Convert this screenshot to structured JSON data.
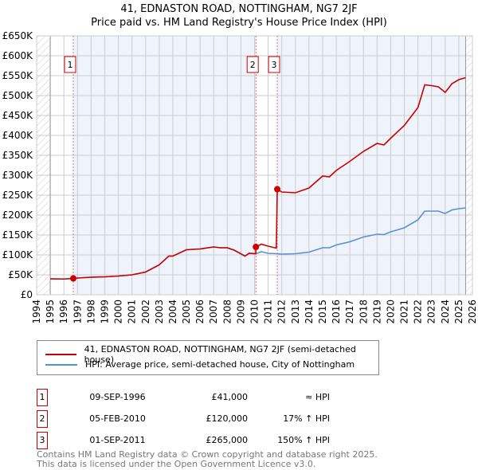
{
  "chart_data": {
    "type": "line",
    "title": "41, EDNASTON ROAD, NOTTINGHAM, NG7 2JF",
    "subtitle": "Price paid vs. HM Land Registry's House Price Index (HPI)",
    "xlim": [
      1994,
      2026
    ],
    "ylim": [
      0,
      650000
    ],
    "yticks": [
      0,
      50000,
      100000,
      150000,
      200000,
      250000,
      300000,
      350000,
      400000,
      450000,
      500000,
      550000,
      600000,
      650000
    ],
    "ytick_labels": [
      "£0",
      "£50K",
      "£100K",
      "£150K",
      "£200K",
      "£250K",
      "£300K",
      "£350K",
      "£400K",
      "£450K",
      "£500K",
      "£550K",
      "£600K",
      "£650K"
    ],
    "xticks": [
      1994,
      1995,
      1996,
      1997,
      1998,
      1999,
      2000,
      2001,
      2002,
      2003,
      2004,
      2005,
      2006,
      2007,
      2008,
      2009,
      2010,
      2011,
      2012,
      2013,
      2014,
      2015,
      2016,
      2017,
      2018,
      2019,
      2020,
      2021,
      2022,
      2023,
      2024,
      2025,
      2026
    ],
    "data_start": 1995,
    "data_end": 2025.5,
    "series": [
      {
        "name": "41, EDNASTON ROAD, NOTTINGHAM, NG7 2JF (semi-detached house)",
        "color": "#cc0000",
        "x": [
          1995,
          1996,
          1996.69,
          1997,
          1998,
          1999,
          2000,
          2001,
          2002,
          2003,
          2003.7,
          2004,
          2005,
          2006,
          2007,
          2007.5,
          2008,
          2008.5,
          2009.3,
          2009.6,
          2010.09,
          2010.1,
          2010.5,
          2011,
          2011.6,
          2011.67,
          2012,
          2013,
          2014,
          2015,
          2015.5,
          2016,
          2017,
          2018,
          2019,
          2019.5,
          2020,
          2021,
          2022,
          2022.5,
          2023,
          2023.5,
          2024,
          2024.5,
          2025,
          2025.5
        ],
        "y": [
          40000,
          39500,
          41000,
          42000,
          44000,
          45000,
          47000,
          50000,
          57000,
          75000,
          97000,
          97000,
          113000,
          115000,
          120000,
          118000,
          118000,
          112000,
          97000,
          104000,
          103000,
          120000,
          127000,
          122000,
          117000,
          265000,
          258000,
          256000,
          268000,
          298000,
          296000,
          312000,
          335000,
          360000,
          380000,
          376000,
          393000,
          425000,
          470000,
          527000,
          525000,
          522000,
          508000,
          530000,
          540000,
          545000
        ]
      },
      {
        "name": "HPI: Average price, semi-detached house, City of Nottingham",
        "color": "#5b8fd4",
        "x": [
          1995,
          1996,
          1996.69,
          1997,
          1998,
          1999,
          2000,
          2001,
          2002,
          2003,
          2003.7,
          2004,
          2005,
          2006,
          2007,
          2007.5,
          2008,
          2008.5,
          2009.3,
          2009.6,
          2010.1,
          2010.5,
          2011,
          2011.67,
          2012,
          2013,
          2014,
          2015,
          2015.5,
          2016,
          2017,
          2018,
          2019,
          2019.5,
          2020,
          2021,
          2022,
          2022.5,
          2023,
          2023.5,
          2024,
          2024.5,
          2025,
          2025.5
        ],
        "y": [
          40000,
          39500,
          41000,
          42000,
          44000,
          45000,
          47000,
          50000,
          57000,
          75000,
          97000,
          97000,
          113000,
          115000,
          120000,
          118000,
          118000,
          112000,
          97000,
          104000,
          103000,
          108000,
          104000,
          103000,
          102000,
          103000,
          107000,
          118000,
          118000,
          125000,
          133000,
          145000,
          152000,
          151000,
          158000,
          168000,
          188000,
          210000,
          210000,
          210000,
          204000,
          213000,
          216000,
          218000
        ]
      }
    ],
    "sales": [
      {
        "label": "1",
        "date": "09-SEP-1996",
        "x": 1996.69,
        "price": 41000,
        "price_label": "£41,000",
        "hpi": "≈ HPI"
      },
      {
        "label": "2",
        "date": "05-FEB-2010",
        "x": 2010.1,
        "price": 120000,
        "price_label": "£120,000",
        "hpi": "17% ↑ HPI"
      },
      {
        "label": "3",
        "date": "01-SEP-2011",
        "x": 2011.67,
        "price": 265000,
        "price_label": "£265,000",
        "hpi": "150% ↑ HPI"
      }
    ],
    "legend_placement": "below"
  },
  "footer": [
    "Contains HM Land Registry data © Crown copyright and database right 2025.",
    "This data is licensed under the Open Government Licence v3.0."
  ]
}
